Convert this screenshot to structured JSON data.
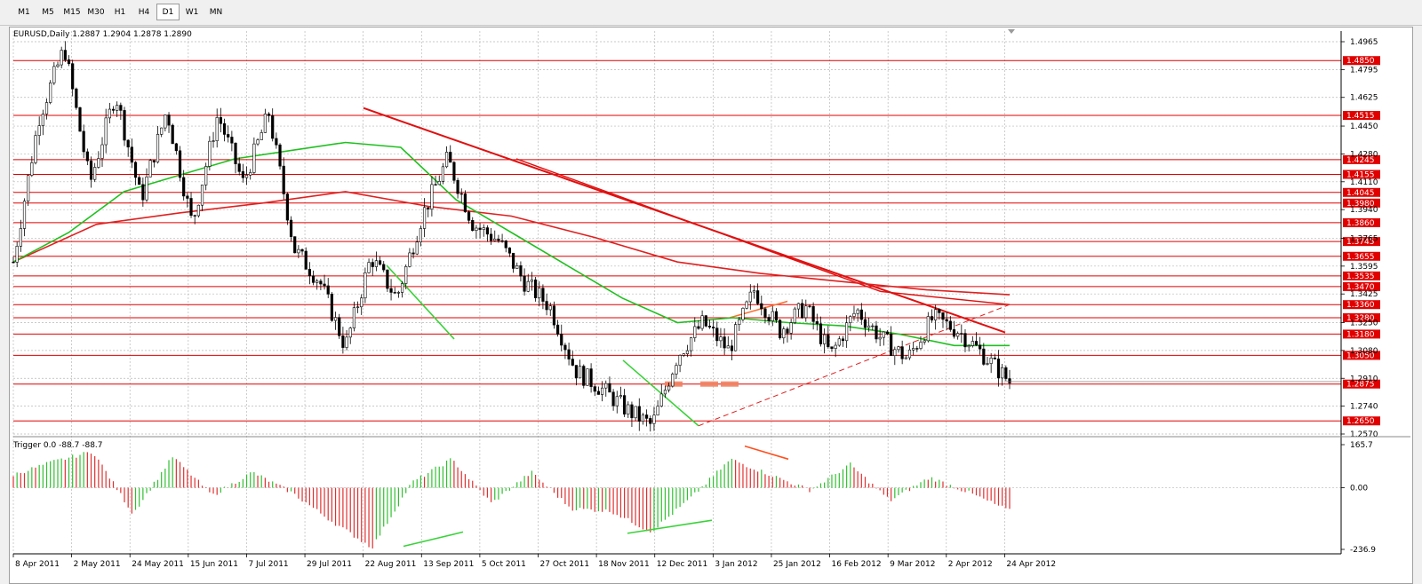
{
  "toolbar": {
    "timeframes": [
      "M1",
      "M5",
      "M15",
      "M30",
      "H1",
      "H4",
      "D1",
      "W1",
      "MN"
    ],
    "active": "D1"
  },
  "chart_data": {
    "type": "candlestick",
    "symbol_header": "EURUSD,Daily  1.2887 1.2904 1.2878 1.2890",
    "ylim": [
      1.257,
      1.4965
    ],
    "y_ticks": [
      "1.4965",
      "1.4795",
      "1.4625",
      "1.4450",
      "1.4280",
      "1.4110",
      "1.3940",
      "1.3765",
      "1.3595",
      "1.3425",
      "1.3250",
      "1.3080",
      "1.2910",
      "1.2740",
      "1.2570"
    ],
    "horizontal_levels": [
      1.485,
      1.4515,
      1.4245,
      1.4155,
      1.4045,
      1.398,
      1.386,
      1.3745,
      1.3655,
      1.3535,
      1.347,
      1.336,
      1.328,
      1.318,
      1.305,
      1.2875,
      1.265
    ],
    "level_labels": [
      "1.4850",
      "1.4515",
      "1.4245",
      "1.4155",
      "1.4045",
      "1.3980",
      "1.3860",
      "1.3745",
      "1.3655",
      "1.3535",
      "1.3470",
      "1.3360",
      "1.3280",
      "1.3180",
      "1.3050",
      "1.2875",
      "1.2650"
    ],
    "x_labels": [
      "8 Apr 2011",
      "2 May 2011",
      "24 May 2011",
      "15 Jun 2011",
      "7 Jul 2011",
      "29 Jul 2011",
      "22 Aug 2011",
      "13 Sep 2011",
      "5 Oct 2011",
      "27 Oct 2011",
      "18 Nov 2011",
      "12 Dec 2011",
      "3 Jan 2012",
      "25 Jan 2012",
      "16 Feb 2012",
      "9 Mar 2012",
      "2 Apr 2012",
      "24 Apr 2012"
    ],
    "price_path": [
      1.362,
      1.45,
      1.493,
      1.41,
      1.465,
      1.4,
      1.455,
      1.385,
      1.452,
      1.41,
      1.453,
      1.37,
      1.35,
      1.31,
      1.365,
      1.34,
      1.39,
      1.425,
      1.385,
      1.375,
      1.35,
      1.335,
      1.296,
      1.285,
      1.272,
      1.262,
      1.305,
      1.325,
      1.308,
      1.345,
      1.32,
      1.335,
      1.305,
      1.333,
      1.315,
      1.303,
      1.328,
      1.32,
      1.305,
      1.289
    ],
    "ma_green": [
      1.362,
      1.38,
      1.405,
      1.415,
      1.425,
      1.43,
      1.435,
      1.432,
      1.4,
      1.38,
      1.36,
      1.34,
      1.325,
      1.328,
      1.325,
      1.323,
      1.318,
      1.311,
      1.311
    ],
    "ma_red": [
      1.362,
      1.385,
      1.392,
      1.398,
      1.405,
      1.396,
      1.39,
      1.377,
      1.362,
      1.355,
      1.35,
      1.345,
      1.342
    ],
    "oscillator": {
      "title": "Trigger 0.0 -88.7 -88.7",
      "ylim": [
        -236.9,
        165.7
      ],
      "y_ticks": [
        "165.7",
        "0.00",
        "-236.9"
      ],
      "path": [
        50,
        100,
        140,
        -100,
        120,
        -30,
        60,
        -20,
        -130,
        -230,
        20,
        110,
        -60,
        60,
        -80,
        -90,
        -170,
        -40,
        110,
        50,
        -10,
        90,
        -50,
        40,
        -20,
        -88.7
      ]
    }
  }
}
